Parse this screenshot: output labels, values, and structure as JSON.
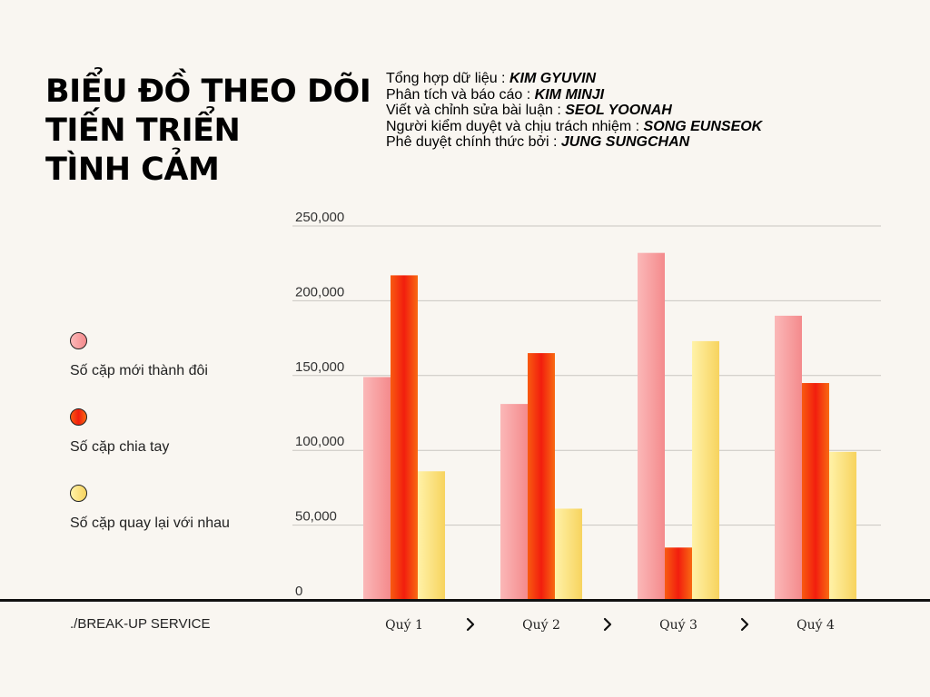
{
  "title_lines": [
    "BIỂU ĐỒ THEO DÕI",
    "TIẾN TRIỂN",
    "TÌNH CẢM"
  ],
  "credits": [
    {
      "role": "Tổng hợp dữ liệu : ",
      "name": "KIM GYUVIN"
    },
    {
      "role": "Phân tích và báo cáo : ",
      "name": "KIM MINJI"
    },
    {
      "role": "Viết và chỉnh sửa bài luận : ",
      "name": "SEOL YOONAH"
    },
    {
      "role": "Người kiểm duyệt và chịu trách nhiệm : ",
      "name": "SONG EUNSEOK"
    },
    {
      "role": "Phê duyệt chính thức bởi : ",
      "name": "JUNG SUNGCHAN"
    }
  ],
  "footer_brand": "./BREAK-UP SERVICE",
  "colors": {
    "background": "#f9f6f1",
    "series_1": "#f48a8c",
    "series_2": "#f03a10",
    "series_3": "#f9dc6c"
  },
  "chart_data": {
    "type": "bar",
    "categories": [
      "Quý 1",
      "Quý 2",
      "Quý 3",
      "Quý 4"
    ],
    "category_separator_icon": "chevron-right-icon",
    "series": [
      {
        "name": "Số cặp mới thành đôi",
        "values": [
          149000,
          131000,
          232000,
          190000
        ]
      },
      {
        "name": "Số cặp chia tay",
        "values": [
          217000,
          165000,
          35000,
          145000
        ]
      },
      {
        "name": "Số cặp quay lại với nhau",
        "values": [
          86000,
          61000,
          173000,
          99000
        ]
      }
    ],
    "ylim": [
      0,
      250000
    ],
    "yticks": [
      0,
      50000,
      100000,
      150000,
      200000,
      250000
    ],
    "ytick_labels": [
      "0",
      "50,000",
      "100,000",
      "150,000",
      "200,000",
      "250,000"
    ],
    "grid": true,
    "legend_position": "left"
  }
}
